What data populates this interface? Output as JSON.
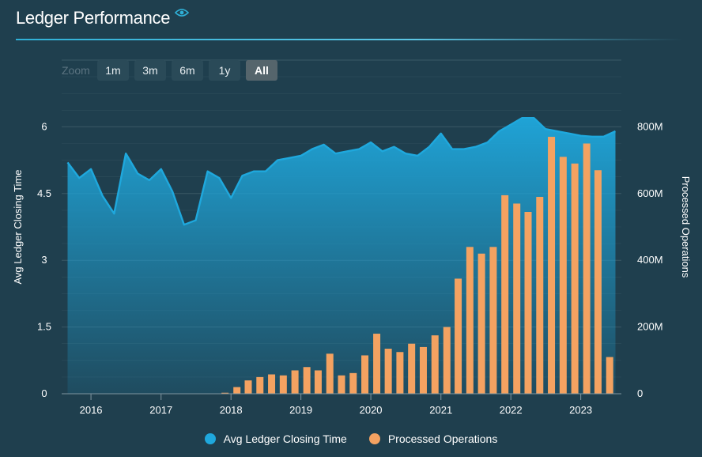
{
  "header": {
    "title": "Ledger Performance",
    "title_icon": "eye-icon"
  },
  "zoom": {
    "label": "Zoom",
    "buttons": [
      {
        "label": "1m",
        "active": false
      },
      {
        "label": "3m",
        "active": false
      },
      {
        "label": "6m",
        "active": false
      },
      {
        "label": "1y",
        "active": false
      },
      {
        "label": "All",
        "active": true
      }
    ]
  },
  "colors": {
    "background": "#1f3f4e",
    "line": "#1fa8dd",
    "bars": "#f4a261",
    "grid": "#3d5b68",
    "title_rule": "#2fb0d6"
  },
  "legend": {
    "items": [
      {
        "label": "Avg Ledger Closing Time",
        "color": "#1fa8dd"
      },
      {
        "label": "Processed Operations",
        "color": "#f4a261"
      }
    ]
  },
  "chart_data": {
    "type": "line+bar",
    "title": "Ledger Performance",
    "xaxis": {
      "type": "date",
      "range": [
        "2015-08-01",
        "2023-08-01"
      ],
      "tick_labels": [
        "2016",
        "2017",
        "2018",
        "2019",
        "2020",
        "2021",
        "2022",
        "2023"
      ]
    },
    "yaxis_left": {
      "label": "Avg Ledger Closing Time",
      "range": [
        0,
        7.5
      ],
      "tick_labels": [
        "0",
        "1.5",
        "3",
        "4.5",
        "6"
      ]
    },
    "yaxis_right": {
      "label": "Processed Operations",
      "range": [
        0,
        1000000000
      ],
      "tick_labels": [
        "0",
        "200M",
        "400M",
        "600M",
        "800M"
      ]
    },
    "grid": true,
    "legend_position": "bottom",
    "series": [
      {
        "name": "Avg Ledger Closing Time",
        "kind": "area-line",
        "axis": "left",
        "points": [
          [
            "2015-09-01",
            5.2
          ],
          [
            "2015-11-01",
            4.85
          ],
          [
            "2016-01-01",
            5.05
          ],
          [
            "2016-03-01",
            4.45
          ],
          [
            "2016-05-01",
            4.05
          ],
          [
            "2016-07-01",
            5.4
          ],
          [
            "2016-09-01",
            4.95
          ],
          [
            "2016-11-01",
            4.8
          ],
          [
            "2017-01-01",
            5.05
          ],
          [
            "2017-03-01",
            4.55
          ],
          [
            "2017-05-01",
            3.8
          ],
          [
            "2017-07-01",
            3.9
          ],
          [
            "2017-09-01",
            5.0
          ],
          [
            "2017-11-01",
            4.85
          ],
          [
            "2018-01-01",
            4.4
          ],
          [
            "2018-03-01",
            4.9
          ],
          [
            "2018-05-01",
            5.0
          ],
          [
            "2018-07-01",
            5.0
          ],
          [
            "2018-09-01",
            5.25
          ],
          [
            "2018-11-01",
            5.3
          ],
          [
            "2019-01-01",
            5.35
          ],
          [
            "2019-03-01",
            5.5
          ],
          [
            "2019-05-01",
            5.6
          ],
          [
            "2019-07-01",
            5.4
          ],
          [
            "2019-09-01",
            5.45
          ],
          [
            "2019-11-01",
            5.5
          ],
          [
            "2020-01-01",
            5.65
          ],
          [
            "2020-03-01",
            5.45
          ],
          [
            "2020-05-01",
            5.55
          ],
          [
            "2020-07-01",
            5.4
          ],
          [
            "2020-09-01",
            5.35
          ],
          [
            "2020-11-01",
            5.55
          ],
          [
            "2021-01-01",
            5.85
          ],
          [
            "2021-03-01",
            5.5
          ],
          [
            "2021-05-01",
            5.5
          ],
          [
            "2021-07-01",
            5.55
          ],
          [
            "2021-09-01",
            5.65
          ],
          [
            "2021-11-01",
            5.9
          ],
          [
            "2022-01-01",
            6.05
          ],
          [
            "2022-03-01",
            6.2
          ],
          [
            "2022-05-01",
            6.2
          ],
          [
            "2022-07-01",
            5.95
          ],
          [
            "2022-09-01",
            5.9
          ],
          [
            "2022-11-01",
            5.85
          ],
          [
            "2023-01-01",
            5.8
          ],
          [
            "2023-03-01",
            5.78
          ],
          [
            "2023-05-01",
            5.78
          ],
          [
            "2023-07-01",
            5.9
          ]
        ]
      },
      {
        "name": "Processed Operations",
        "kind": "bar",
        "axis": "right",
        "points": [
          [
            "2017-12-01",
            3000000
          ],
          [
            "2018-02-01",
            20000000
          ],
          [
            "2018-04-01",
            40000000
          ],
          [
            "2018-06-01",
            50000000
          ],
          [
            "2018-08-01",
            58000000
          ],
          [
            "2018-10-01",
            55000000
          ],
          [
            "2018-12-01",
            70000000
          ],
          [
            "2019-02-01",
            80000000
          ],
          [
            "2019-04-01",
            70000000
          ],
          [
            "2019-06-01",
            120000000
          ],
          [
            "2019-08-01",
            55000000
          ],
          [
            "2019-10-01",
            62000000
          ],
          [
            "2019-12-01",
            115000000
          ],
          [
            "2020-02-01",
            180000000
          ],
          [
            "2020-04-01",
            135000000
          ],
          [
            "2020-06-01",
            125000000
          ],
          [
            "2020-08-01",
            150000000
          ],
          [
            "2020-10-01",
            140000000
          ],
          [
            "2020-12-01",
            175000000
          ],
          [
            "2021-02-01",
            200000000
          ],
          [
            "2021-04-01",
            345000000
          ],
          [
            "2021-06-01",
            440000000
          ],
          [
            "2021-08-01",
            420000000
          ],
          [
            "2021-10-01",
            440000000
          ],
          [
            "2021-12-01",
            595000000
          ],
          [
            "2022-02-01",
            570000000
          ],
          [
            "2022-04-01",
            545000000
          ],
          [
            "2022-06-01",
            590000000
          ],
          [
            "2022-08-01",
            770000000
          ],
          [
            "2022-10-01",
            710000000
          ],
          [
            "2022-12-01",
            690000000
          ],
          [
            "2023-02-01",
            750000000
          ],
          [
            "2023-04-01",
            670000000
          ],
          [
            "2023-06-01",
            110000000
          ]
        ]
      }
    ]
  }
}
